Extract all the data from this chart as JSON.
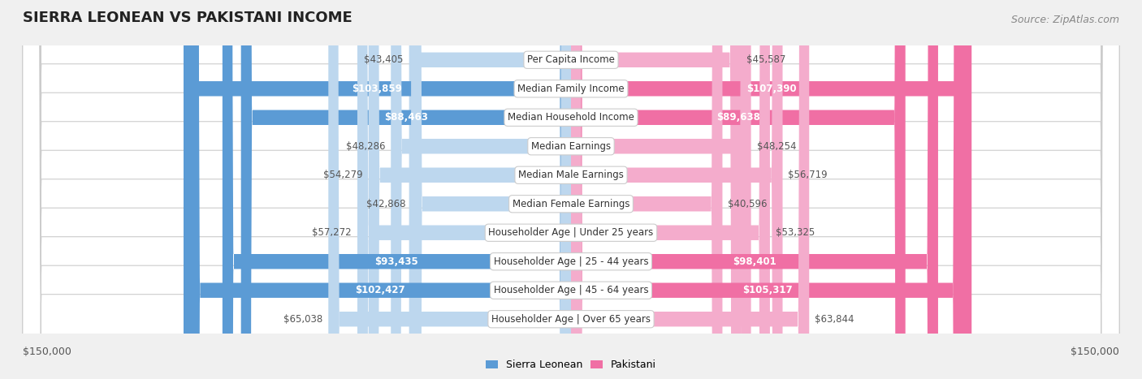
{
  "title": "SIERRA LEONEAN VS PAKISTANI INCOME",
  "source": "Source: ZipAtlas.com",
  "categories": [
    "Per Capita Income",
    "Median Family Income",
    "Median Household Income",
    "Median Earnings",
    "Median Male Earnings",
    "Median Female Earnings",
    "Householder Age | Under 25 years",
    "Householder Age | 25 - 44 years",
    "Householder Age | 45 - 64 years",
    "Householder Age | Over 65 years"
  ],
  "sierra_leonean": [
    43405,
    103859,
    88463,
    48286,
    54279,
    42868,
    57272,
    93435,
    102427,
    65038
  ],
  "pakistani": [
    45587,
    107390,
    89638,
    48254,
    56719,
    40596,
    53325,
    98401,
    105317,
    63844
  ],
  "max_val": 150000,
  "sl_color_high": "#5b9bd5",
  "sl_color_low": "#bdd7ee",
  "pk_color_high": "#f06fa4",
  "pk_color_low": "#f4accc",
  "sl_high_threshold": 80000,
  "pk_high_threshold": 80000,
  "sl_label_color_high": "#ffffff",
  "sl_label_color_low": "#555555",
  "pk_label_color_high": "#ffffff",
  "pk_label_color_low": "#555555",
  "background_color": "#f0f0f0",
  "row_bg_color": "#ffffff",
  "row_border_color": "#cccccc",
  "center_label_bg": "#ffffff",
  "center_label_color": "#333333",
  "title_fontsize": 13,
  "source_fontsize": 9,
  "bar_label_fontsize": 8.5,
  "category_fontsize": 8.5,
  "legend_fontsize": 9,
  "axis_label_fontsize": 9
}
